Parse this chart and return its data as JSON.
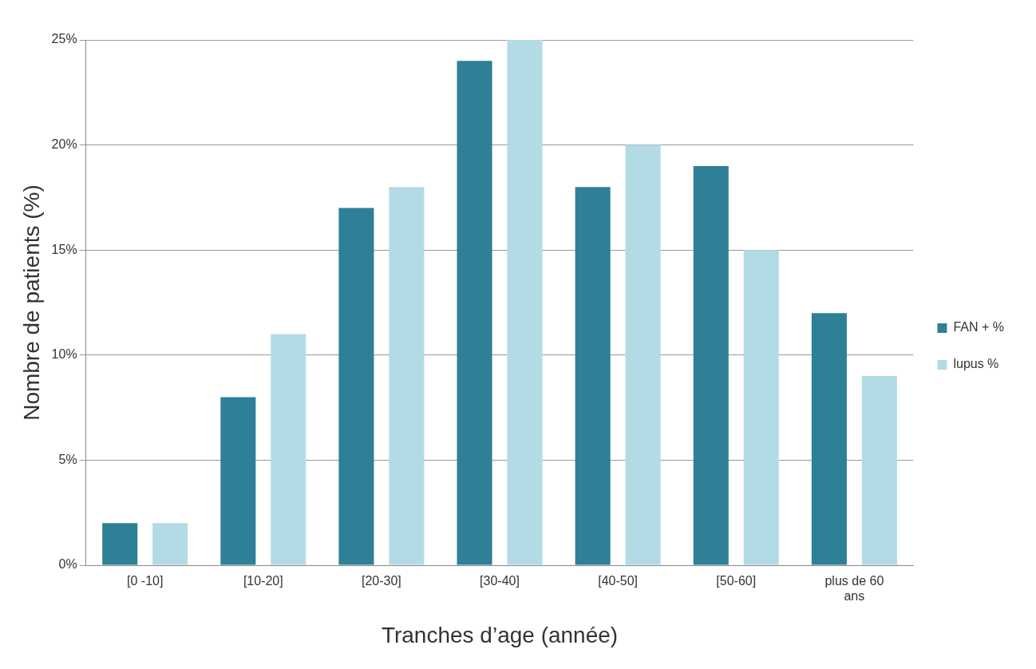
{
  "chart_data": {
    "type": "bar",
    "xlabel": "Tranches d’age (année)",
    "ylabel": "Nombre de patients (%)",
    "categories": [
      "[0 -10]",
      "[10-20]",
      "[20-30]",
      "[30-40]",
      "[40-50]",
      "[50-60]",
      "plus de 60 ans"
    ],
    "series": [
      {
        "name": "FAN + %",
        "color": "#2e8096",
        "values": [
          2,
          8,
          17,
          24,
          18,
          19,
          12
        ]
      },
      {
        "name": "lupus %",
        "color": "#b3dbe6",
        "values": [
          2,
          11,
          18,
          25,
          20,
          15,
          9
        ]
      }
    ],
    "ylim": [
      0,
      25
    ],
    "yticks": [
      {
        "value": 0,
        "label": "0%"
      },
      {
        "value": 5,
        "label": "5%"
      },
      {
        "value": 10,
        "label": "10%"
      },
      {
        "value": 15,
        "label": "15%"
      },
      {
        "value": 20,
        "label": "20%"
      },
      {
        "value": 25,
        "label": "25%"
      }
    ],
    "grid": "y",
    "legend": "right"
  }
}
